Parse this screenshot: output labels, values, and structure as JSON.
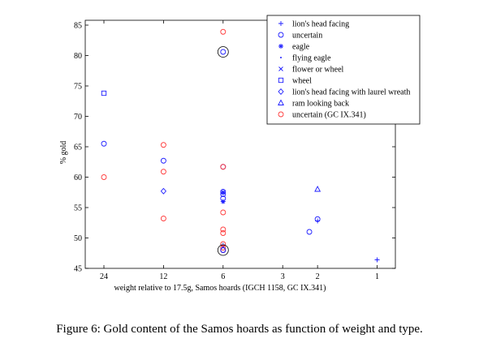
{
  "caption": "Figure 6: Gold content of the Samos hoards as function of weight and type.",
  "colors": {
    "blue": "#1f1fff",
    "red": "#ff3b3b",
    "black": "#000000"
  },
  "chart_data": {
    "type": "scatter",
    "xlabel": "weight relative to 17.5g, Samos hoards (IGCH 1158, GC IX.341)",
    "ylabel": "% gold",
    "x_ticks": [
      24,
      12,
      6,
      3,
      2,
      1
    ],
    "x_scale": "log",
    "ylim": [
      45,
      85
    ],
    "y_ticks": [
      45,
      50,
      55,
      60,
      65,
      70,
      75,
      80,
      85
    ],
    "legend_position": "top-right",
    "series": [
      {
        "name": "lion's head facing",
        "marker": "plus",
        "color": "blue",
        "points": [
          [
            2,
            52.8
          ],
          [
            1,
            46.4
          ],
          [
            6,
            48.8
          ]
        ]
      },
      {
        "name": "uncertain",
        "marker": "circle",
        "color": "blue",
        "points": [
          [
            24,
            65.5
          ],
          [
            12,
            62.7
          ],
          [
            6,
            61.7
          ],
          [
            6,
            57.6
          ],
          [
            6,
            57.2
          ],
          [
            6,
            56.5
          ],
          [
            6,
            48.0
          ],
          [
            2,
            53.1
          ],
          [
            2.2,
            51.0
          ]
        ]
      },
      {
        "name": "eagle",
        "marker": "star",
        "color": "blue",
        "points": [
          [
            6,
            57.5
          ],
          [
            6,
            56.0
          ]
        ]
      },
      {
        "name": "flying eagle",
        "marker": "dot",
        "color": "blue",
        "points": [
          [
            6,
            55.8
          ]
        ]
      },
      {
        "name": "flower or wheel",
        "marker": "x",
        "color": "blue",
        "points": [
          [
            6,
            48.6
          ]
        ]
      },
      {
        "name": "wheel",
        "marker": "square",
        "color": "blue",
        "points": [
          [
            24,
            73.8
          ]
        ]
      },
      {
        "name": "lion's head facing with laurel wreath",
        "marker": "diamond",
        "color": "blue",
        "points": [
          [
            12,
            57.7
          ]
        ]
      },
      {
        "name": "ram looking back",
        "marker": "triangle",
        "color": "blue",
        "points": [
          [
            2,
            58.0
          ]
        ]
      },
      {
        "name": "uncertain (GC IX.341)",
        "marker": "circle",
        "color": "red",
        "points": [
          [
            6,
            83.9
          ],
          [
            12,
            65.3
          ],
          [
            6,
            61.7
          ],
          [
            24,
            60.0
          ],
          [
            12,
            60.9
          ],
          [
            12,
            53.2
          ],
          [
            6,
            54.2
          ],
          [
            6,
            51.4
          ],
          [
            6,
            50.8
          ],
          [
            6,
            49.0
          ],
          [
            6,
            48.4
          ],
          [
            6,
            48.0
          ]
        ]
      }
    ],
    "highlighted_points": [
      [
        6,
        80.6
      ],
      [
        6,
        48.0
      ]
    ]
  }
}
